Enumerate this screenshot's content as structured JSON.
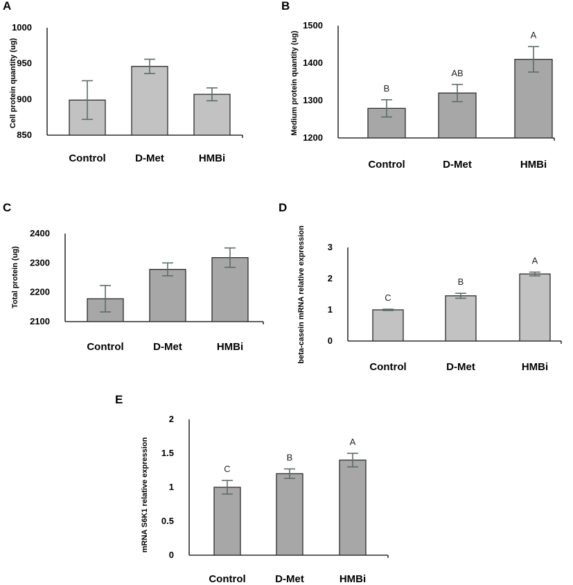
{
  "chart_data": [
    {
      "panel": "A",
      "type": "bar",
      "categories": [
        "Control",
        "D-Met",
        "HMBi"
      ],
      "values": [
        899,
        946,
        907
      ],
      "errors": [
        27,
        10,
        9
      ],
      "letters": [
        "",
        "",
        ""
      ],
      "ylabel": "Cell protein quantity (ug)",
      "ylim": [
        850,
        1000
      ],
      "yticks": [
        "850",
        "900",
        "950",
        "1000"
      ],
      "bar_color": "#c2c2c2"
    },
    {
      "panel": "B",
      "type": "bar",
      "categories": [
        "Control",
        "D-Met",
        "HMBi"
      ],
      "values": [
        1279,
        1320,
        1410
      ],
      "errors": [
        23,
        23,
        34
      ],
      "letters": [
        "B",
        "AB",
        "A"
      ],
      "ylabel": "Medium protein quantity (ug)",
      "ylim": [
        1200,
        1500
      ],
      "yticks": [
        "1200",
        "1300",
        "1400",
        "1500"
      ],
      "bar_color": "#a7a7a7"
    },
    {
      "panel": "C",
      "type": "bar",
      "categories": [
        "Control",
        "D-Met",
        "HMBi"
      ],
      "values": [
        2178,
        2278,
        2318
      ],
      "errors": [
        45,
        22,
        33
      ],
      "letters": [
        "",
        "",
        ""
      ],
      "ylabel": "Total protein (ug)",
      "ylim": [
        2100,
        2400
      ],
      "yticks": [
        "2100",
        "2200",
        "2300",
        "2400"
      ],
      "bar_color": "#a7a7a7"
    },
    {
      "panel": "D",
      "type": "bar",
      "categories": [
        "Control",
        "D-Met",
        "HMBi"
      ],
      "values": [
        1.0,
        1.45,
        2.15
      ],
      "errors": [
        0.02,
        0.08,
        0.06
      ],
      "letters": [
        "C",
        "B",
        "A"
      ],
      "ylabel": "beta-casein mRNA relative expression",
      "ylim": [
        0,
        3
      ],
      "yticks": [
        "0",
        "1",
        "2",
        "3"
      ],
      "bar_color": "#c2c2c2"
    },
    {
      "panel": "E",
      "type": "bar",
      "categories": [
        "Control",
        "D-Met",
        "HMBi"
      ],
      "values": [
        1.0,
        1.2,
        1.4
      ],
      "errors": [
        0.1,
        0.07,
        0.1
      ],
      "letters": [
        "C",
        "B",
        "A"
      ],
      "ylabel": "mRNA S6K1 relative expression",
      "ylim": [
        0,
        2
      ],
      "yticks": [
        "0",
        "0.5",
        "1",
        "1.5",
        "2"
      ],
      "bar_color": "#a7a7a7"
    }
  ]
}
